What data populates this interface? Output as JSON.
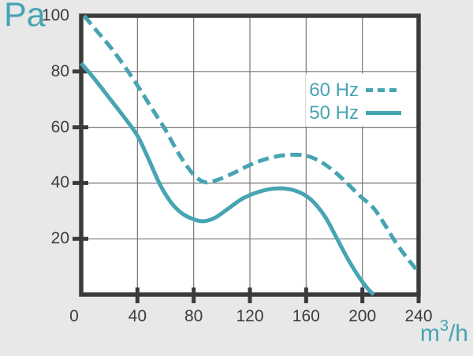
{
  "labels": {
    "y_unit": "Pa",
    "x_unit_base": "m",
    "x_unit_sup": "3",
    "x_unit_rest": "/h"
  },
  "colors": {
    "accent": "#46a4b3",
    "axis": "#3b3b3b",
    "grid": "#787878",
    "background": "#e7e8e7",
    "plot_background": "#ffffff"
  },
  "chart_data": {
    "type": "line",
    "title": "",
    "xlabel": "m³/h",
    "ylabel": "Pa",
    "xlim": [
      0,
      240
    ],
    "ylim": [
      0,
      100
    ],
    "x_ticks": [
      0,
      40,
      80,
      120,
      160,
      200,
      240
    ],
    "y_ticks": [
      20,
      40,
      60,
      80,
      100
    ],
    "grid": true,
    "legend_position": "inside-upper-right",
    "series": [
      {
        "name": "60 Hz",
        "line_style": "dashed",
        "points": [
          [
            2,
            100
          ],
          [
            12,
            94
          ],
          [
            22,
            88
          ],
          [
            32,
            81
          ],
          [
            40,
            75
          ],
          [
            50,
            67
          ],
          [
            60,
            59
          ],
          [
            70,
            50
          ],
          [
            80,
            43
          ],
          [
            88,
            40.3
          ],
          [
            96,
            41
          ],
          [
            108,
            43.5
          ],
          [
            120,
            46.5
          ],
          [
            132,
            48.7
          ],
          [
            145,
            50
          ],
          [
            158,
            50
          ],
          [
            168,
            48.3
          ],
          [
            178,
            45
          ],
          [
            188,
            40.5
          ],
          [
            198,
            35.5
          ],
          [
            208,
            31
          ],
          [
            216,
            25
          ],
          [
            224,
            18.5
          ],
          [
            232,
            13
          ],
          [
            240,
            8
          ]
        ]
      },
      {
        "name": "50 Hz",
        "line_style": "solid",
        "points": [
          [
            0,
            83
          ],
          [
            10,
            77
          ],
          [
            20,
            70.5
          ],
          [
            30,
            64
          ],
          [
            40,
            57
          ],
          [
            48,
            48.5
          ],
          [
            56,
            39.5
          ],
          [
            64,
            33
          ],
          [
            72,
            29
          ],
          [
            80,
            27
          ],
          [
            87,
            26.3
          ],
          [
            95,
            27.5
          ],
          [
            105,
            31
          ],
          [
            115,
            34.5
          ],
          [
            126,
            36.8
          ],
          [
            137,
            38
          ],
          [
            148,
            37.8
          ],
          [
            158,
            36
          ],
          [
            166,
            32.8
          ],
          [
            174,
            27.5
          ],
          [
            182,
            20
          ],
          [
            190,
            12.5
          ],
          [
            198,
            6
          ],
          [
            204,
            2
          ],
          [
            208,
            0
          ]
        ]
      }
    ]
  }
}
